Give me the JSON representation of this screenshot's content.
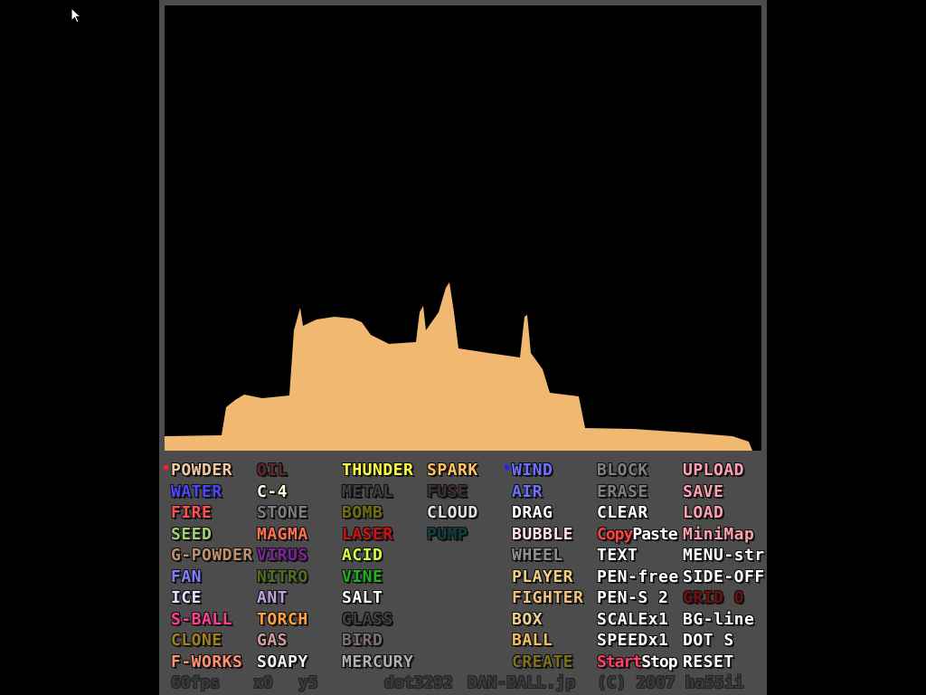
{
  "powder_color": "#f0b870",
  "columns": [
    [
      {
        "label": "POWDER",
        "color": "#f0c8a0",
        "selected": "#ff2020"
      },
      {
        "label": "WATER",
        "color": "#4848ff"
      },
      {
        "label": "FIRE",
        "color": "#ff5050"
      },
      {
        "label": "SEED",
        "color": "#a0d070"
      },
      {
        "label": "G-POWDER",
        "color": "#c09070"
      },
      {
        "label": "FAN",
        "color": "#8080ff"
      },
      {
        "label": "ICE",
        "color": "#e0e0ff"
      },
      {
        "label": "S-BALL",
        "color": "#ff4090"
      },
      {
        "label": "CLONE",
        "color": "#a08020"
      },
      {
        "label": "F-WORKS",
        "color": "#ff9070"
      }
    ],
    [
      {
        "label": "OIL",
        "color": "#602828"
      },
      {
        "label": "C-4",
        "color": "#ffffe0"
      },
      {
        "label": "STONE",
        "color": "#808080"
      },
      {
        "label": "MAGMA",
        "color": "#ff7050"
      },
      {
        "label": "VIRUS",
        "color": "#8020a0"
      },
      {
        "label": "NITRO",
        "color": "#507020"
      },
      {
        "label": "ANT",
        "color": "#c0a0e0"
      },
      {
        "label": "TORCH",
        "color": "#ffa040"
      },
      {
        "label": "GAS",
        "color": "#d0a0a0"
      },
      {
        "label": "SOAPY",
        "color": "#f0f0f0"
      }
    ],
    [
      {
        "label": "THUNDER",
        "color": "#ffff40"
      },
      {
        "label": "METAL",
        "color": "#404040"
      },
      {
        "label": "BOMB",
        "color": "#707010"
      },
      {
        "label": "LASER",
        "color": "#d01010"
      },
      {
        "label": "ACID",
        "color": "#d0ff40"
      },
      {
        "label": "VINE",
        "color": "#20b020"
      },
      {
        "label": "SALT",
        "color": "#ffffff"
      },
      {
        "label": "GLASS",
        "color": "#404040"
      },
      {
        "label": "BIRD",
        "color": "#807070"
      },
      {
        "label": "MERCURY",
        "color": "#b0b0b0"
      }
    ],
    [
      {
        "label": "SPARK",
        "color": "#ffc060"
      },
      {
        "label": "FUSE",
        "color": "#403030"
      },
      {
        "label": "CLOUD",
        "color": "#e0e0e0"
      },
      {
        "label": "PUMP",
        "color": "#104040"
      }
    ],
    [
      {
        "label": "WIND",
        "color": "#7070ff",
        "selected": "#2020ff"
      },
      {
        "label": "AIR",
        "color": "#7070ff"
      },
      {
        "label": "DRAG",
        "color": "#ffffff"
      },
      {
        "label": "BUBBLE",
        "color": "#ffe0f0"
      },
      {
        "label": "WHEEL",
        "color": "#909090"
      },
      {
        "label": "PLAYER",
        "color": "#f0d080"
      },
      {
        "label": "FIGHTER",
        "color": "#f0c080"
      },
      {
        "label": "BOX",
        "color": "#f0d090"
      },
      {
        "label": "BALL",
        "color": "#f0c060"
      },
      {
        "label": "CREATE",
        "color": "#807020"
      }
    ],
    [
      {
        "label": "BLOCK",
        "color": "#808080"
      },
      {
        "label": "ERASE",
        "color": "#808080"
      },
      {
        "label": "CLEAR",
        "color": "#ffffff"
      },
      {
        "parts": [
          {
            "label": "Copy",
            "color": "#ff4040"
          },
          {
            "label": "Paste",
            "color": "#ffffff"
          }
        ]
      },
      {
        "label": "TEXT",
        "color": "#ffffff"
      },
      {
        "label": "PEN-free",
        "color": "#ffffff"
      },
      {
        "label": "PEN-S 2",
        "color": "#ffffff"
      },
      {
        "label": "SCALEx1",
        "color": "#ffffff"
      },
      {
        "label": "SPEEDx1",
        "color": "#ffffff"
      },
      {
        "parts": [
          {
            "label": "Start",
            "color": "#ff4060"
          },
          {
            "label": "Stop",
            "color": "#ffffff"
          }
        ]
      }
    ],
    [
      {
        "label": "UPLOAD",
        "color": "#ffa0b0"
      },
      {
        "label": "SAVE",
        "color": "#ffa0b0"
      },
      {
        "label": "LOAD",
        "color": "#ffa0b0"
      },
      {
        "label": "MiniMap",
        "color": "#ffa0b0"
      },
      {
        "label": "MENU-str",
        "color": "#ffffff"
      },
      {
        "label": "SIDE-OFF",
        "color": "#ffffff"
      },
      {
        "label": "GRID 0",
        "color": "#701010"
      },
      {
        "label": "BG-line",
        "color": "#ffffff"
      },
      {
        "label": "DOT S",
        "color": "#ffffff"
      },
      {
        "label": "RESET",
        "color": "#ffffff"
      }
    ]
  ],
  "status": {
    "fps": "60fps",
    "x": "x0",
    "y": "y5",
    "dots": "dot3292",
    "site": "DAN-BALL.jp",
    "copyright": "(C) 2007 ha55ii"
  }
}
